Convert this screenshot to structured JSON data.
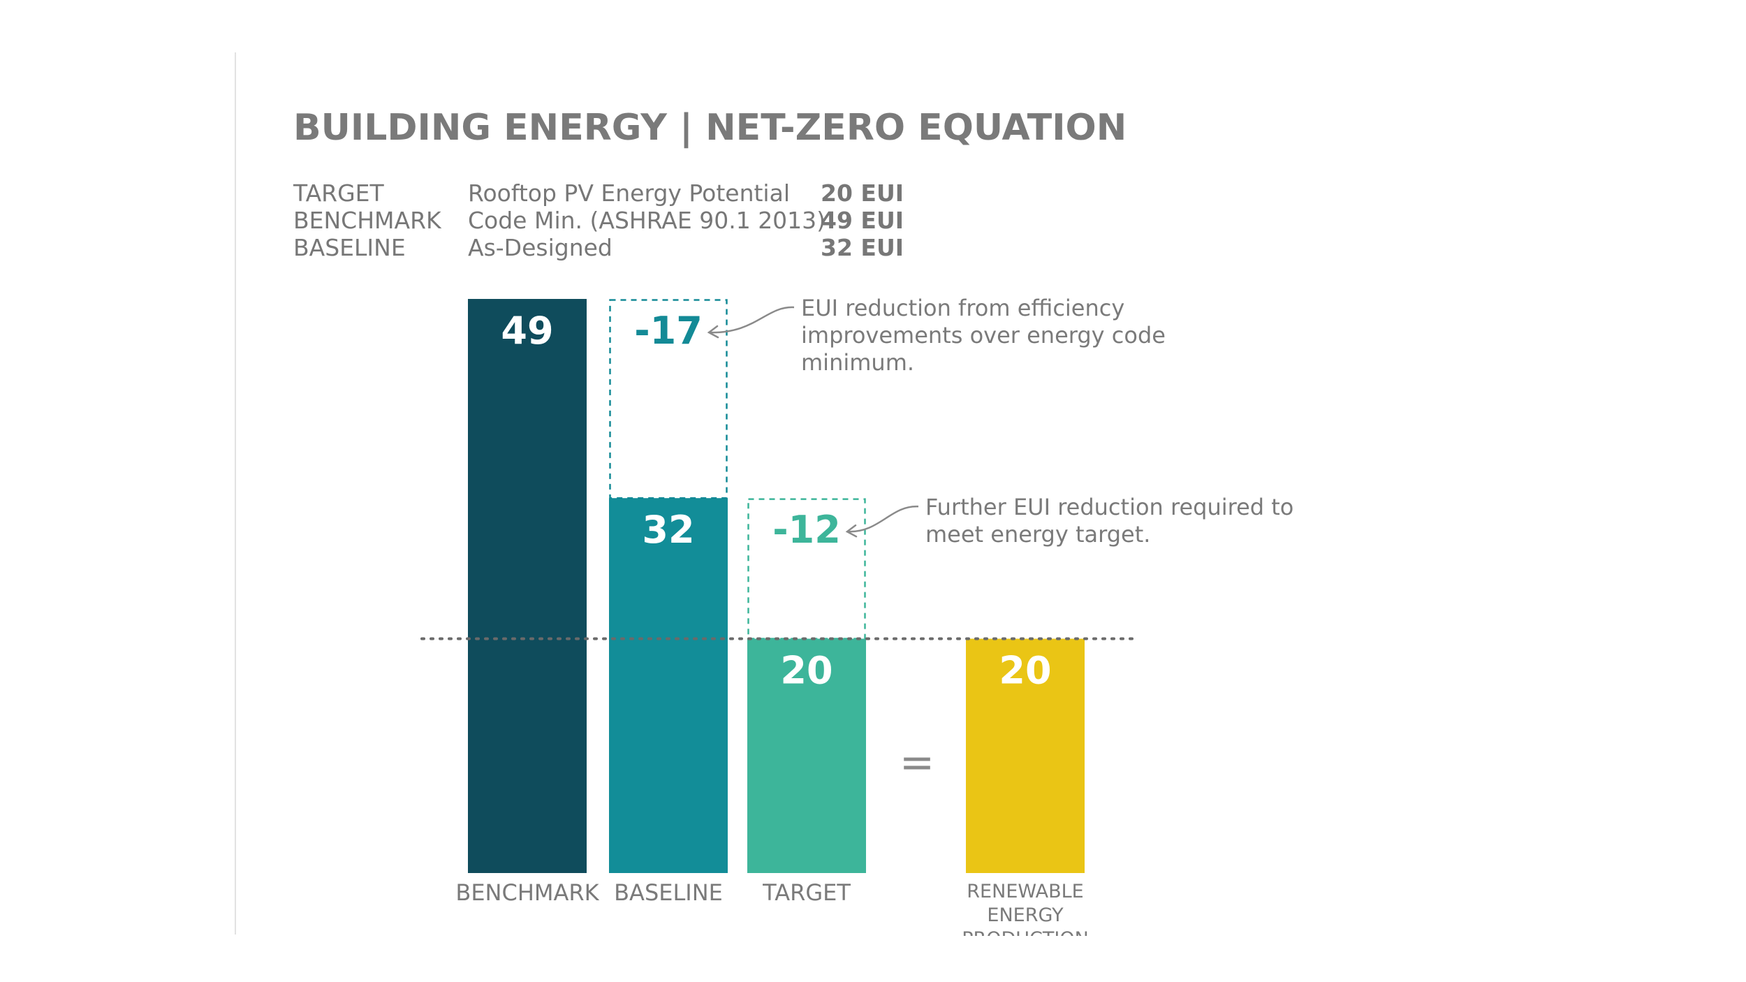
{
  "title": "BUILDING ENERGY | NET-ZERO EQUATION",
  "summary": [
    {
      "label": "TARGET",
      "description": "Rooftop PV Energy Potential",
      "value": "20 EUI"
    },
    {
      "label": "BENCHMARK",
      "description": "Code Min. (ASHRAE 90.1 2013)",
      "value": "49 EUI"
    },
    {
      "label": "BASELINE",
      "description": "As-Designed",
      "value": "32 EUI"
    }
  ],
  "equals_sign": "=",
  "colors": {
    "benchmark": "#0f4c5c",
    "baseline": "#128d98",
    "target": "#3db59a",
    "renewable": "#eac515",
    "reduction_text_1": "#138a96",
    "reduction_text_2": "#3db59a",
    "text": "#7a7a7a"
  },
  "chart_data": {
    "type": "bar",
    "title": "BUILDING ENERGY | NET-ZERO EQUATION",
    "units": "EUI",
    "categories": [
      "BENCHMARK",
      "BASELINE",
      "TARGET",
      "RENEWABLE ENERGY PRODUCTION"
    ],
    "category_lines": [
      [
        "BENCHMARK"
      ],
      [
        "BASELINE"
      ],
      [
        "TARGET"
      ],
      [
        "RENEWABLE",
        "ENERGY",
        "PRODUCTION"
      ]
    ],
    "values": [
      49,
      32,
      20,
      20
    ],
    "value_labels": [
      "49",
      "32",
      "20",
      "20"
    ],
    "reductions": [
      {
        "category": "BASELINE",
        "from": 49,
        "to": 32,
        "value": -17,
        "label": "-17",
        "annotation_lines": [
          "EUI reduction from efficiency",
          "improvements over energy code",
          "minimum."
        ]
      },
      {
        "category": "TARGET",
        "from": 32,
        "to": 20,
        "value": -12,
        "label": "-12",
        "annotation_lines": [
          "Further EUI reduction required to",
          "meet energy target."
        ]
      }
    ],
    "reference_line": 20,
    "ylim": [
      0,
      49
    ],
    "grid": false,
    "legend": "none"
  }
}
